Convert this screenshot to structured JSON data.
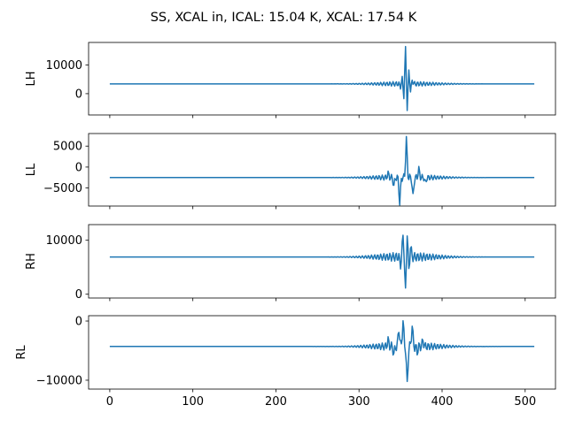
{
  "figure": {
    "title": "SS, XCAL in, ICAL: 15.04 K, XCAL: 17.54 K",
    "line_color": "#1f77b4"
  },
  "chart_data": [
    {
      "type": "line",
      "ylabel": "LH",
      "xlim": [
        -25.5,
        536.5
      ],
      "ylim": [
        -7400,
        17800
      ],
      "yticks": [
        0,
        10000
      ],
      "ytick_labels": [
        "0",
        "10000"
      ],
      "xticks": [
        0,
        100,
        200,
        300,
        400,
        500
      ],
      "xtick_labels": [],
      "baseline": 3400,
      "n_points": 512,
      "peak_index": 357,
      "peaks": [
        {
          "x": 350,
          "y": 2300
        },
        {
          "x": 352,
          "y": 5500
        },
        {
          "x": 354,
          "y": -1800
        },
        {
          "x": 356,
          "y": 16500
        },
        {
          "x": 358,
          "y": -6300
        },
        {
          "x": 360,
          "y": 8500
        },
        {
          "x": 362,
          "y": 500
        },
        {
          "x": 364,
          "y": 4800
        }
      ]
    },
    {
      "type": "line",
      "ylabel": "LL",
      "xlim": [
        -25.5,
        536.5
      ],
      "ylim": [
        -9300,
        8000
      ],
      "yticks": [
        -5000,
        0,
        5000
      ],
      "ytick_labels": [
        "−5000",
        "0",
        "5000"
      ],
      "xticks": [
        0,
        100,
        200,
        300,
        400,
        500
      ],
      "xtick_labels": [],
      "baseline": -2500,
      "n_points": 512,
      "peak_index": 357,
      "peaks": [
        {
          "x": 335,
          "y": -1500
        },
        {
          "x": 342,
          "y": -4500
        },
        {
          "x": 349,
          "y": -8700
        },
        {
          "x": 357,
          "y": 6800
        },
        {
          "x": 365,
          "y": -7200
        },
        {
          "x": 372,
          "y": -500
        },
        {
          "x": 380,
          "y": -3800
        }
      ]
    },
    {
      "type": "line",
      "ylabel": "RH",
      "xlim": [
        -25.5,
        536.5
      ],
      "ylim": [
        -700,
        12900
      ],
      "yticks": [
        0,
        10000
      ],
      "ytick_labels": [
        "0",
        "10000"
      ],
      "xticks": [
        0,
        100,
        200,
        300,
        400,
        500
      ],
      "xtick_labels": [],
      "baseline": 6900,
      "n_points": 512,
      "peak_index": 357,
      "peaks": [
        {
          "x": 350,
          "y": 5500
        },
        {
          "x": 353,
          "y": 11000
        },
        {
          "x": 356,
          "y": 0
        },
        {
          "x": 358,
          "y": 12100
        },
        {
          "x": 360,
          "y": 3800
        },
        {
          "x": 362,
          "y": 9000
        }
      ]
    },
    {
      "type": "line",
      "ylabel": "RL",
      "xlim": [
        -25.5,
        536.5
      ],
      "ylim": [
        -11500,
        900
      ],
      "yticks": [
        -10000,
        0
      ],
      "ytick_labels": [
        "−10000",
        "0"
      ],
      "xticks": [
        0,
        100,
        200,
        300,
        400,
        500
      ],
      "xtick_labels": [
        "0",
        "100",
        "200",
        "300",
        "400",
        "500"
      ],
      "baseline": -4300,
      "n_points": 512,
      "peak_index": 357,
      "peaks": [
        {
          "x": 335,
          "y": -3200
        },
        {
          "x": 342,
          "y": -5600
        },
        {
          "x": 348,
          "y": -1200
        },
        {
          "x": 353,
          "y": 0
        },
        {
          "x": 358,
          "y": -10900
        },
        {
          "x": 364,
          "y": -800
        },
        {
          "x": 370,
          "y": -5200
        },
        {
          "x": 377,
          "y": -3300
        }
      ]
    }
  ]
}
